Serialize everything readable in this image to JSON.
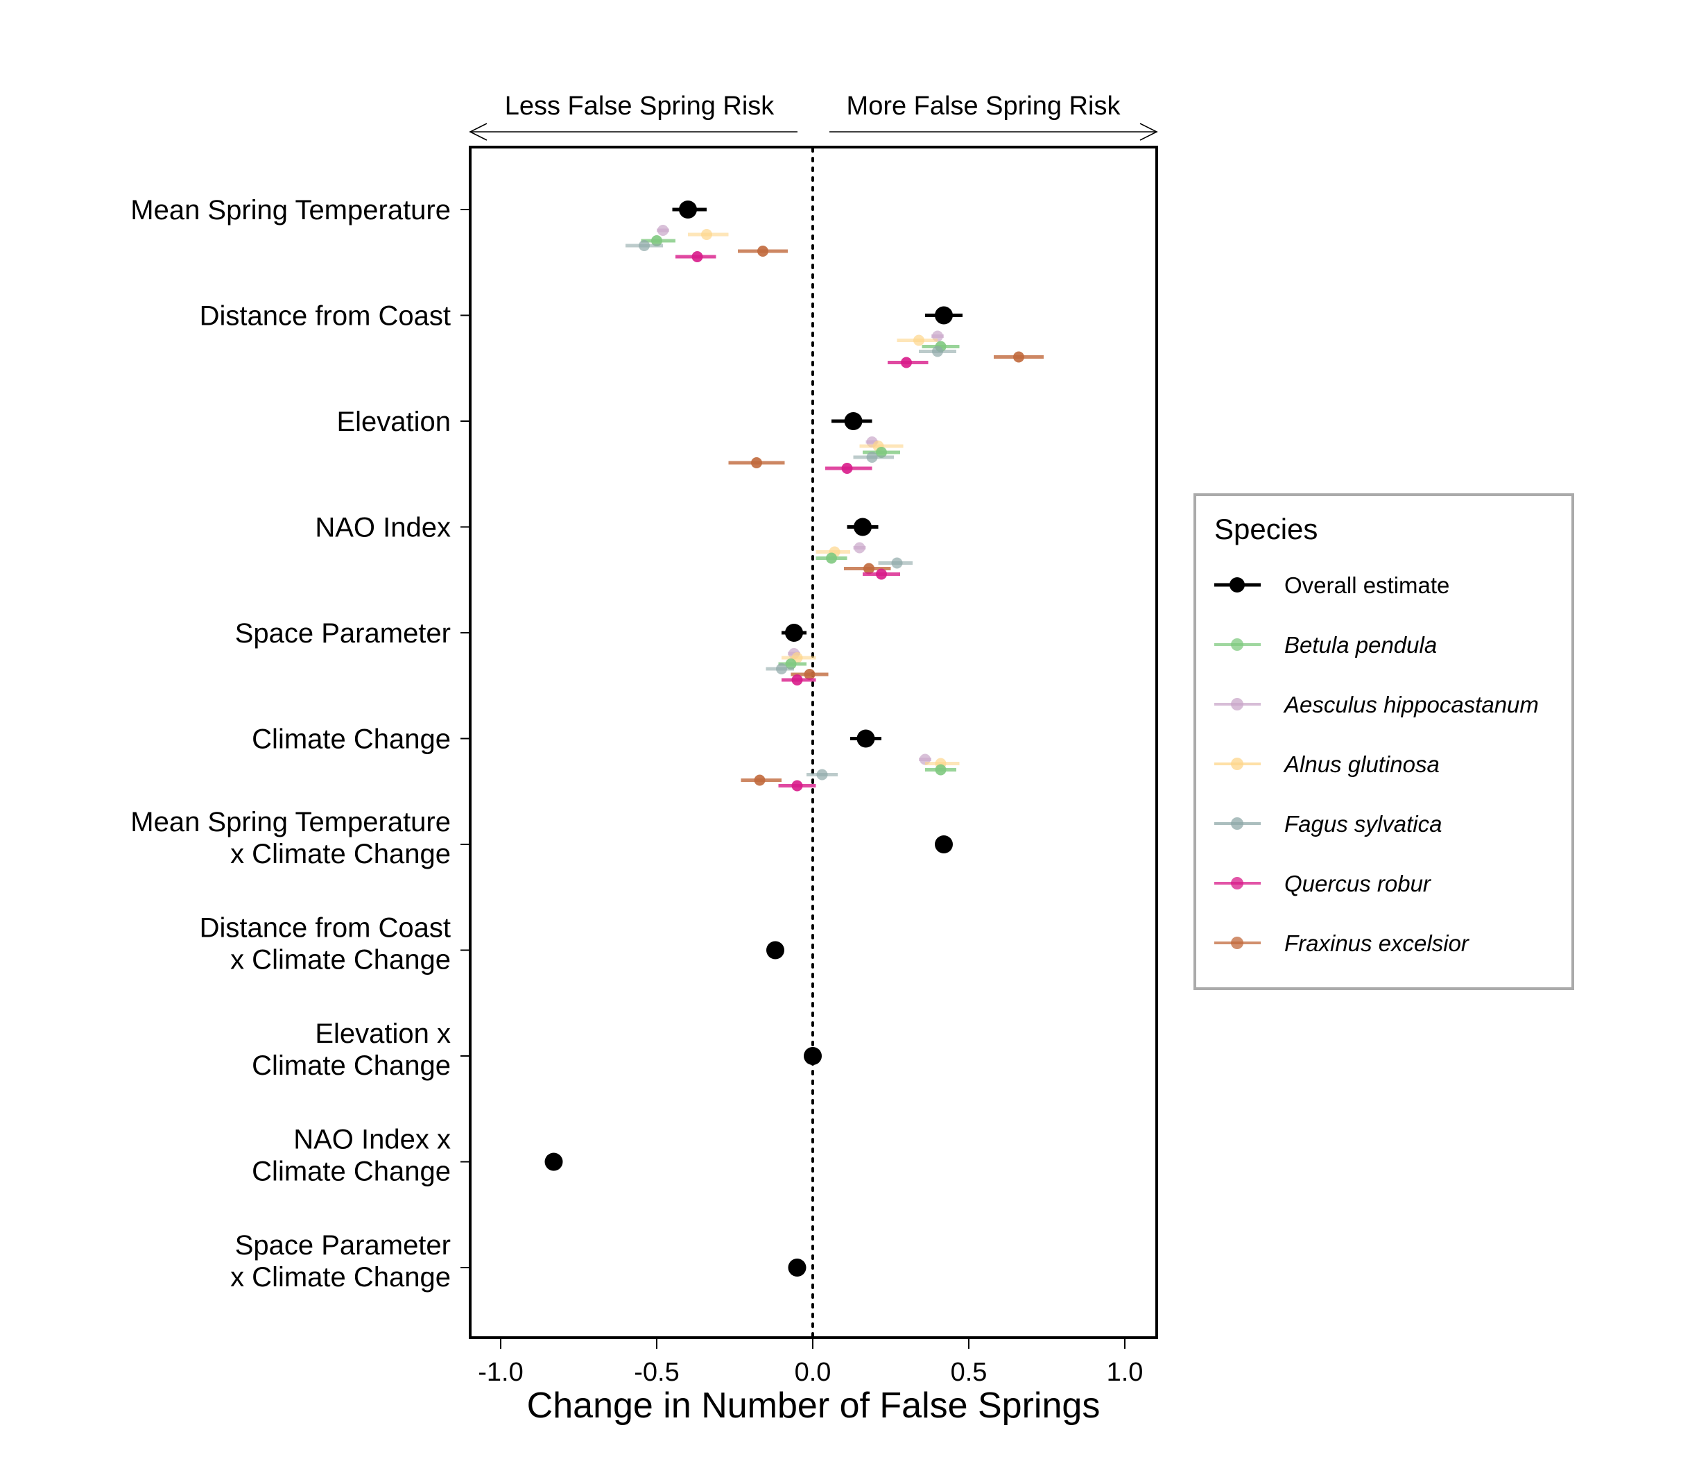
{
  "chart_data": {
    "type": "forest",
    "xlabel": "Change in Number of False Springs",
    "xlim": [
      -1.1,
      1.1
    ],
    "xticks": [
      {
        "value": -1.0,
        "label": "-1.0"
      },
      {
        "value": -0.5,
        "label": "-0.5"
      },
      {
        "value": 0.0,
        "label": "0.0"
      },
      {
        "value": 0.5,
        "label": "0.5"
      },
      {
        "value": 1.0,
        "label": "1.0"
      }
    ],
    "reference_line": 0,
    "risk_labels": {
      "left": "Less False Spring Risk",
      "right": "More False Spring Risk"
    },
    "legend": {
      "title": "Species",
      "placement": "right",
      "entries": [
        {
          "key": "overall",
          "label": "Overall estimate",
          "color": "#000000",
          "italic": false
        },
        {
          "key": "betula",
          "label": "Betula pendula",
          "color": "#7fc97f",
          "italic": true
        },
        {
          "key": "aesculus",
          "label": "Aesculus hippocastanum",
          "color": "#c9a7c9",
          "italic": true
        },
        {
          "key": "alnus",
          "label": "Alnus glutinosa",
          "color": "#fdd68a",
          "italic": true
        },
        {
          "key": "fagus",
          "label": "Fagus sylvatica",
          "color": "#8fa8a8",
          "italic": true
        },
        {
          "key": "quercus",
          "label": "Quercus robur",
          "color": "#d81b8a",
          "italic": true
        },
        {
          "key": "fraxinus",
          "label": "Fraxinus excelsior",
          "color": "#c1693c",
          "italic": true
        }
      ]
    },
    "rows": [
      {
        "label_lines": [
          "Mean Spring Temperature"
        ],
        "overall": {
          "estimate": -0.4,
          "lower": -0.45,
          "upper": -0.34
        },
        "species": [
          {
            "key": "aesculus",
            "estimate": -0.48,
            "lower": -0.5,
            "upper": -0.46
          },
          {
            "key": "alnus",
            "estimate": -0.34,
            "lower": -0.4,
            "upper": -0.27
          },
          {
            "key": "betula",
            "estimate": -0.5,
            "lower": -0.55,
            "upper": -0.44
          },
          {
            "key": "fagus",
            "estimate": -0.54,
            "lower": -0.6,
            "upper": -0.48
          },
          {
            "key": "fraxinus",
            "estimate": -0.16,
            "lower": -0.24,
            "upper": -0.08
          },
          {
            "key": "quercus",
            "estimate": -0.37,
            "lower": -0.44,
            "upper": -0.31
          }
        ]
      },
      {
        "label_lines": [
          "Distance from Coast"
        ],
        "overall": {
          "estimate": 0.42,
          "lower": 0.36,
          "upper": 0.48
        },
        "species": [
          {
            "key": "aesculus",
            "estimate": 0.4,
            "lower": 0.38,
            "upper": 0.42
          },
          {
            "key": "alnus",
            "estimate": 0.34,
            "lower": 0.27,
            "upper": 0.4
          },
          {
            "key": "betula",
            "estimate": 0.41,
            "lower": 0.35,
            "upper": 0.47
          },
          {
            "key": "fagus",
            "estimate": 0.4,
            "lower": 0.34,
            "upper": 0.46
          },
          {
            "key": "fraxinus",
            "estimate": 0.66,
            "lower": 0.58,
            "upper": 0.74
          },
          {
            "key": "quercus",
            "estimate": 0.3,
            "lower": 0.24,
            "upper": 0.37
          }
        ]
      },
      {
        "label_lines": [
          "Elevation"
        ],
        "overall": {
          "estimate": 0.13,
          "lower": 0.06,
          "upper": 0.19
        },
        "species": [
          {
            "key": "aesculus",
            "estimate": 0.19,
            "lower": 0.17,
            "upper": 0.21
          },
          {
            "key": "alnus",
            "estimate": 0.21,
            "lower": 0.15,
            "upper": 0.29
          },
          {
            "key": "betula",
            "estimate": 0.22,
            "lower": 0.16,
            "upper": 0.28
          },
          {
            "key": "fagus",
            "estimate": 0.19,
            "lower": 0.13,
            "upper": 0.26
          },
          {
            "key": "fraxinus",
            "estimate": -0.18,
            "lower": -0.27,
            "upper": -0.09
          },
          {
            "key": "quercus",
            "estimate": 0.11,
            "lower": 0.04,
            "upper": 0.19
          }
        ]
      },
      {
        "label_lines": [
          "NAO Index"
        ],
        "overall": {
          "estimate": 0.16,
          "lower": 0.11,
          "upper": 0.21
        },
        "species": [
          {
            "key": "aesculus",
            "estimate": 0.15,
            "lower": 0.13,
            "upper": 0.17
          },
          {
            "key": "alnus",
            "estimate": 0.07,
            "lower": 0.01,
            "upper": 0.12
          },
          {
            "key": "betula",
            "estimate": 0.06,
            "lower": 0.01,
            "upper": 0.11
          },
          {
            "key": "fagus",
            "estimate": 0.27,
            "lower": 0.21,
            "upper": 0.32
          },
          {
            "key": "fraxinus",
            "estimate": 0.18,
            "lower": 0.1,
            "upper": 0.25
          },
          {
            "key": "quercus",
            "estimate": 0.22,
            "lower": 0.16,
            "upper": 0.28
          }
        ]
      },
      {
        "label_lines": [
          "Space Parameter"
        ],
        "overall": {
          "estimate": -0.06,
          "lower": -0.1,
          "upper": -0.02
        },
        "species": [
          {
            "key": "aesculus",
            "estimate": -0.06,
            "lower": -0.08,
            "upper": -0.04
          },
          {
            "key": "alnus",
            "estimate": -0.05,
            "lower": -0.1,
            "upper": 0.01
          },
          {
            "key": "betula",
            "estimate": -0.07,
            "lower": -0.11,
            "upper": -0.02
          },
          {
            "key": "fagus",
            "estimate": -0.1,
            "lower": -0.15,
            "upper": -0.06
          },
          {
            "key": "fraxinus",
            "estimate": -0.01,
            "lower": -0.07,
            "upper": 0.05
          },
          {
            "key": "quercus",
            "estimate": -0.05,
            "lower": -0.1,
            "upper": 0.01
          }
        ]
      },
      {
        "label_lines": [
          "Climate Change"
        ],
        "overall": {
          "estimate": 0.17,
          "lower": 0.12,
          "upper": 0.22
        },
        "species": [
          {
            "key": "aesculus",
            "estimate": 0.36,
            "lower": 0.34,
            "upper": 0.38
          },
          {
            "key": "alnus",
            "estimate": 0.41,
            "lower": 0.36,
            "upper": 0.47
          },
          {
            "key": "betula",
            "estimate": 0.41,
            "lower": 0.36,
            "upper": 0.46
          },
          {
            "key": "fagus",
            "estimate": 0.03,
            "lower": -0.02,
            "upper": 0.08
          },
          {
            "key": "fraxinus",
            "estimate": -0.17,
            "lower": -0.23,
            "upper": -0.1
          },
          {
            "key": "quercus",
            "estimate": -0.05,
            "lower": -0.11,
            "upper": 0.01
          }
        ]
      },
      {
        "label_lines": [
          "Mean Spring Temperature",
          "x Climate Change"
        ],
        "overall": {
          "estimate": 0.42,
          "lower": 0.42,
          "upper": 0.42
        },
        "species": []
      },
      {
        "label_lines": [
          "Distance from Coast",
          "x Climate Change"
        ],
        "overall": {
          "estimate": -0.12,
          "lower": -0.12,
          "upper": -0.12
        },
        "species": []
      },
      {
        "label_lines": [
          "Elevation x",
          "Climate Change"
        ],
        "overall": {
          "estimate": 0.0,
          "lower": 0.0,
          "upper": 0.0
        },
        "species": []
      },
      {
        "label_lines": [
          "NAO Index x",
          "Climate Change"
        ],
        "overall": {
          "estimate": -0.83,
          "lower": -0.83,
          "upper": -0.83
        },
        "species": []
      },
      {
        "label_lines": [
          "Space Parameter",
          "x Climate Change"
        ],
        "overall": {
          "estimate": -0.05,
          "lower": -0.05,
          "upper": -0.05
        },
        "species": []
      }
    ]
  }
}
